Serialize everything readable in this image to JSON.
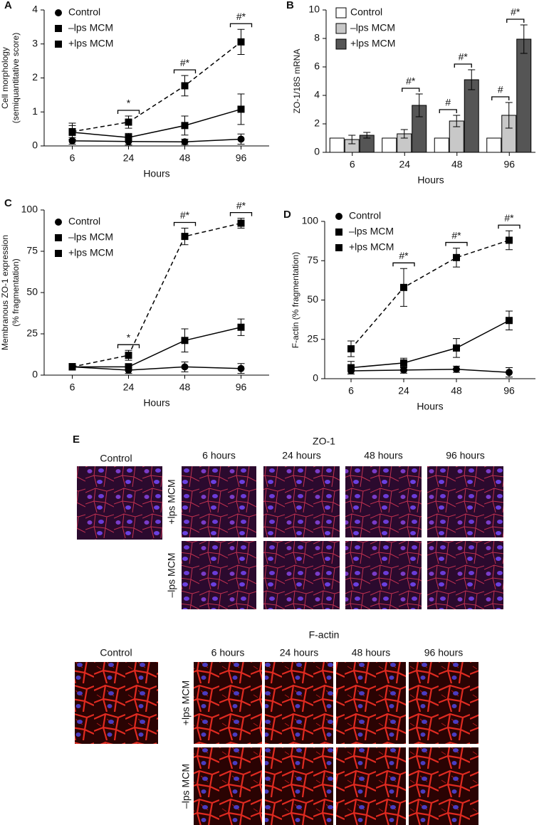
{
  "chart_data": [
    {
      "type": "line",
      "panel": "A",
      "xlabel": "Hours",
      "ylabel": [
        "Cell morphology",
        "(semiquantitative score)"
      ],
      "categories": [
        "6",
        "24",
        "48",
        "96"
      ],
      "ylim": [
        0,
        4
      ],
      "yticks": [
        0,
        1,
        2,
        3,
        4
      ],
      "annotations": [
        null,
        "*",
        "#*",
        "#*"
      ],
      "series": [
        {
          "name": "Control",
          "color": "#000000",
          "marker": "circle",
          "dashed": false,
          "values": [
            0.15,
            0.13,
            0.12,
            0.2
          ],
          "errors": [
            0.1,
            0.1,
            0.08,
            0.15
          ]
        },
        {
          "name": "–lps MCM",
          "color": "#000000",
          "marker": "square",
          "dashed": false,
          "values": [
            0.4,
            0.25,
            0.6,
            1.08
          ],
          "errors": [
            0.2,
            0.12,
            0.28,
            0.45
          ]
        },
        {
          "name": "+lps MCM",
          "color": "#000000",
          "marker": "square",
          "dashed": true,
          "values": [
            0.42,
            0.7,
            1.77,
            3.06
          ],
          "errors": [
            0.25,
            0.18,
            0.3,
            0.37
          ]
        }
      ]
    },
    {
      "type": "bar",
      "panel": "B",
      "xlabel": "Hours",
      "ylabel": [
        "ZO-1/18S mRNA"
      ],
      "categories": [
        "6",
        "24",
        "48",
        "96"
      ],
      "ylim": [
        0,
        10
      ],
      "yticks": [
        0,
        2,
        4,
        6,
        8,
        10
      ],
      "series": [
        {
          "name": "Control",
          "color": "#ffffff",
          "values": [
            1,
            1,
            1,
            1
          ],
          "errors": [
            0,
            0,
            0,
            0
          ],
          "annotations": [
            null,
            null,
            null,
            null
          ]
        },
        {
          "name": "–lps MCM",
          "color": "#c8c8c8",
          "values": [
            0.9,
            1.3,
            2.2,
            2.6
          ],
          "errors": [
            0.3,
            0.3,
            0.4,
            0.9
          ],
          "annotations": [
            null,
            null,
            "#",
            "#"
          ]
        },
        {
          "name": "+lps MCM",
          "color": "#555555",
          "values": [
            1.2,
            3.3,
            5.1,
            7.95
          ],
          "errors": [
            0.2,
            0.8,
            0.7,
            1.0
          ],
          "annotations": [
            null,
            "#*",
            "#*",
            "#*"
          ]
        }
      ]
    },
    {
      "type": "line",
      "panel": "C",
      "xlabel": "Hours",
      "ylabel": [
        "Membranous ZO-1 expression",
        "(% fragmentation)"
      ],
      "categories": [
        "6",
        "24",
        "48",
        "96"
      ],
      "ylim": [
        0,
        100
      ],
      "yticks": [
        0,
        25,
        50,
        75,
        100
      ],
      "annotations": [
        null,
        "*",
        "#*",
        "#*"
      ],
      "series": [
        {
          "name": "Control",
          "color": "#000000",
          "marker": "circle",
          "dashed": false,
          "values": [
            5,
            3,
            5,
            4
          ],
          "errors": [
            2,
            2,
            3,
            3
          ]
        },
        {
          "name": "–lps MCM",
          "color": "#000000",
          "marker": "square",
          "dashed": false,
          "values": [
            5,
            5,
            21,
            29
          ],
          "errors": [
            2,
            2,
            7,
            5
          ]
        },
        {
          "name": "+lps MCM",
          "color": "#000000",
          "marker": "square",
          "dashed": true,
          "values": [
            5,
            12,
            84,
            92
          ],
          "errors": [
            2,
            3,
            5,
            3
          ]
        }
      ]
    },
    {
      "type": "line",
      "panel": "D",
      "xlabel": "Hours",
      "ylabel": [
        "F-actin (% fragmentation)"
      ],
      "categories": [
        "6",
        "24",
        "48",
        "96"
      ],
      "ylim": [
        0,
        100
      ],
      "yticks": [
        0,
        25,
        50,
        75,
        100
      ],
      "annotations": [
        null,
        "#*",
        "#*",
        "#*"
      ],
      "series": [
        {
          "name": "Control",
          "color": "#000000",
          "marker": "circle",
          "dashed": false,
          "values": [
            5,
            5.5,
            6,
            4
          ],
          "errors": [
            2,
            2,
            2,
            3
          ]
        },
        {
          "name": "–lps MCM",
          "color": "#000000",
          "marker": "square",
          "dashed": false,
          "values": [
            7,
            10,
            19.5,
            37
          ],
          "errors": [
            4,
            3,
            6,
            6
          ]
        },
        {
          "name": "+lps MCM",
          "color": "#000000",
          "marker": "square",
          "dashed": true,
          "values": [
            19,
            58,
            77,
            88
          ],
          "errors": [
            5,
            12,
            6,
            6
          ]
        }
      ]
    }
  ],
  "figure_e": {
    "panel": "E",
    "groups": [
      {
        "title": "ZO-1",
        "control": "Control",
        "columns": [
          "6 hours",
          "24 hours",
          "48 hours",
          "96 hours"
        ],
        "rows": [
          "+lps MCM",
          "–lps MCM"
        ]
      },
      {
        "title": "F-actin",
        "control": "Control",
        "columns": [
          "6 hours",
          "24 hours",
          "48 hours",
          "96 hours"
        ],
        "rows": [
          "+lps MCM",
          "–lps MCM"
        ]
      }
    ]
  }
}
